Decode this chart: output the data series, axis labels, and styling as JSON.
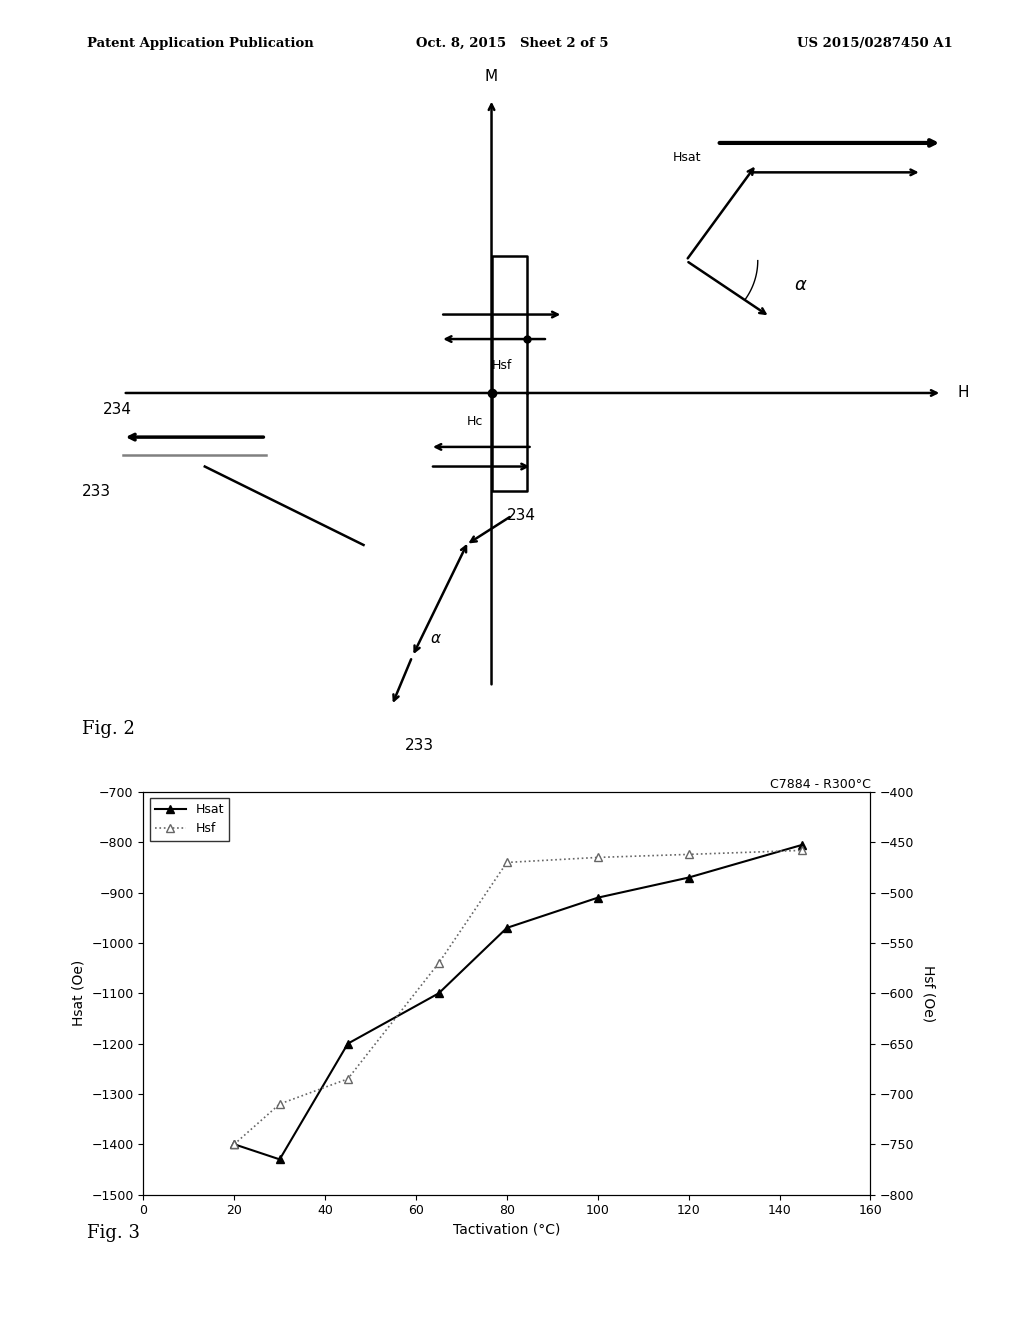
{
  "header_left": "Patent Application Publication",
  "header_center": "Oct. 8, 2015   Sheet 2 of 5",
  "header_right": "US 2015/0287450 A1",
  "fig2_label": "Fig. 2",
  "fig3_label": "Fig. 3",
  "chart_title": "C7884 - R300°C",
  "xlabel": "Tactivation (°C)",
  "ylabel_left": "Hsat (Oe)",
  "ylabel_right": "Hsf (Oe)",
  "xlim": [
    0,
    160
  ],
  "ylim_left": [
    -1500,
    -700
  ],
  "ylim_right": [
    -800,
    -400
  ],
  "xticks": [
    0,
    20,
    40,
    60,
    80,
    100,
    120,
    140,
    160
  ],
  "yticks_left": [
    -1500,
    -1400,
    -1300,
    -1200,
    -1100,
    -1000,
    -900,
    -800,
    -700
  ],
  "yticks_right": [
    -800,
    -750,
    -700,
    -650,
    -600,
    -550,
    -500,
    -450,
    -400
  ],
  "hsat_x": [
    20,
    30,
    45,
    65,
    80,
    100,
    120,
    145
  ],
  "hsat_y": [
    -1400,
    -1430,
    -1200,
    -1100,
    -970,
    -910,
    -870,
    -805
  ],
  "hsf_right_vals": [
    -750,
    -710,
    -685,
    -570,
    -470,
    -465,
    -462,
    -458
  ],
  "hsf_x": [
    20,
    30,
    45,
    65,
    80,
    100,
    120,
    145
  ],
  "hsat_color": "#000000",
  "hsf_color": "#888888",
  "bg_color": "#ffffff"
}
